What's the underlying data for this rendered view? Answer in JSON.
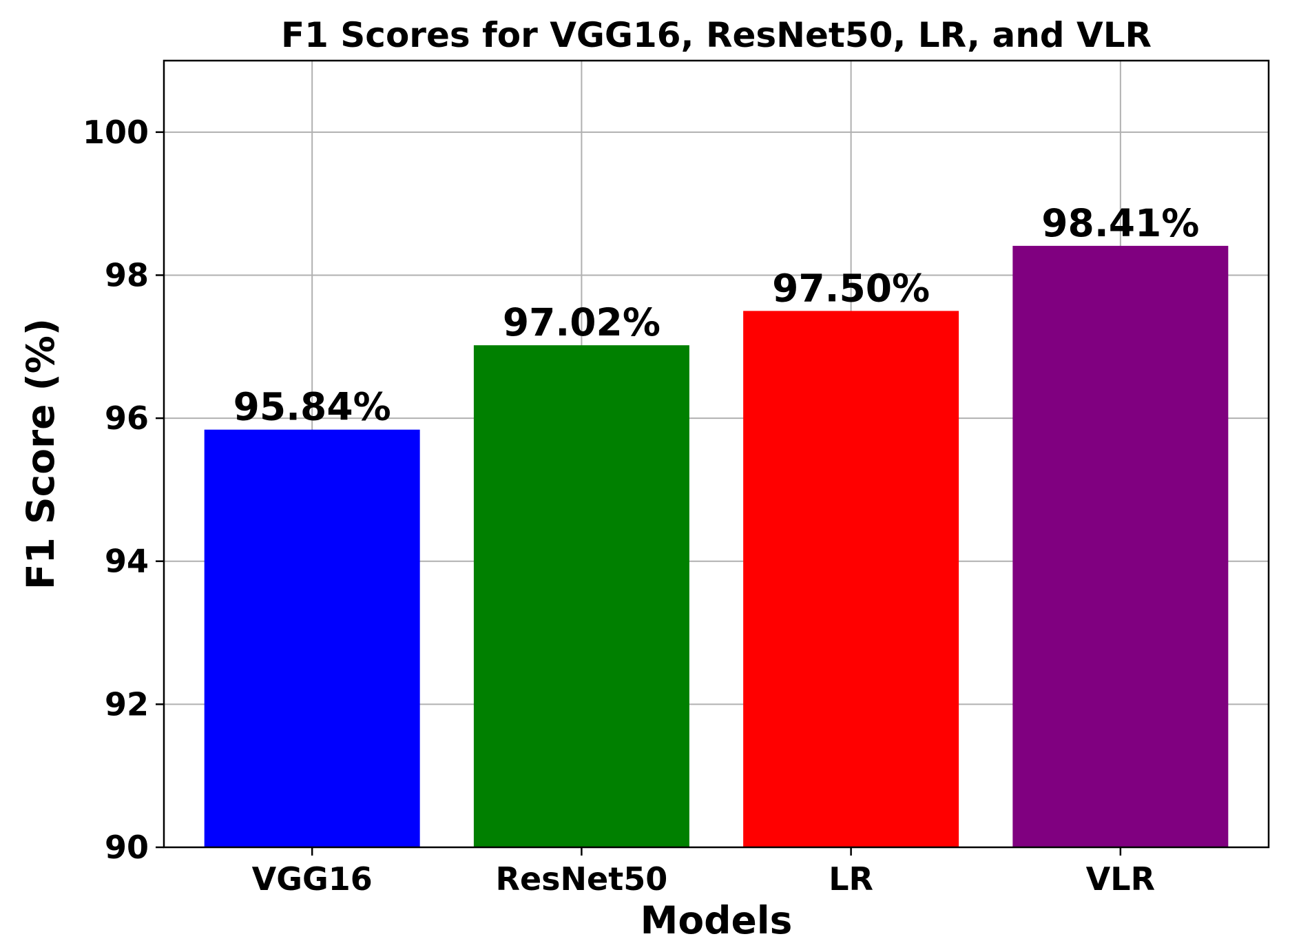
{
  "chart_data": {
    "type": "bar",
    "title": "F1 Scores for VGG16, ResNet50, LR, and VLR",
    "xlabel": "Models",
    "ylabel": "F1 Score (%)",
    "categories": [
      "VGG16",
      "ResNet50",
      "LR",
      "VLR"
    ],
    "values": [
      95.84,
      97.02,
      97.5,
      98.41
    ],
    "data_labels": [
      "95.84%",
      "97.02%",
      "97.50%",
      "98.41%"
    ],
    "colors": [
      "#0000ff",
      "#008000",
      "#ff0000",
      "#800080"
    ],
    "ylim": [
      90,
      101
    ],
    "yticks": [
      90,
      92,
      94,
      96,
      98,
      100
    ],
    "ytick_labels": [
      "90",
      "92",
      "94",
      "96",
      "98",
      "100"
    ],
    "grid": true,
    "legend": "none"
  }
}
